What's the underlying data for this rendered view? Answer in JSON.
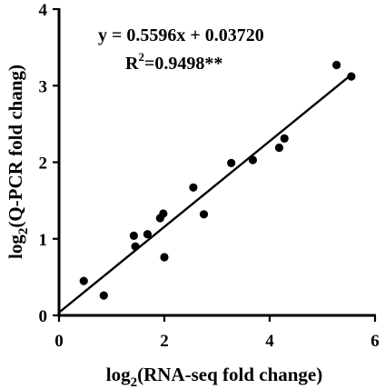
{
  "chart_data": {
    "type": "scatter",
    "title": "",
    "xlabel": {
      "prefix": "log",
      "sub": "2",
      "text": "(RNA-seq fold change)"
    },
    "ylabel": {
      "prefix": "log",
      "sub": "2",
      "text": "(Q-PCR fold chang)"
    },
    "xlim": [
      0,
      6
    ],
    "ylim": [
      0,
      4
    ],
    "xticks": [
      0,
      2,
      4,
      6
    ],
    "yticks": [
      0,
      1,
      2,
      3,
      4
    ],
    "grid": false,
    "points": [
      {
        "x": 0.47,
        "y": 0.45
      },
      {
        "x": 0.85,
        "y": 0.26
      },
      {
        "x": 1.42,
        "y": 1.04
      },
      {
        "x": 1.45,
        "y": 0.9
      },
      {
        "x": 1.68,
        "y": 1.06
      },
      {
        "x": 1.92,
        "y": 1.27
      },
      {
        "x": 1.98,
        "y": 1.33
      },
      {
        "x": 2.0,
        "y": 0.76
      },
      {
        "x": 2.55,
        "y": 1.67
      },
      {
        "x": 2.75,
        "y": 1.32
      },
      {
        "x": 3.27,
        "y": 1.99
      },
      {
        "x": 3.68,
        "y": 2.03
      },
      {
        "x": 4.18,
        "y": 2.19
      },
      {
        "x": 4.28,
        "y": 2.31
      },
      {
        "x": 5.27,
        "y": 3.27
      },
      {
        "x": 5.55,
        "y": 3.12
      }
    ],
    "fit": {
      "slope": 0.5596,
      "intercept": 0.0372,
      "x_range": [
        0,
        5.55
      ]
    },
    "annotations": {
      "equation": "y = 0.5596x + 0.03720",
      "r2_prefix": "R",
      "r2_sup": "2",
      "r2_value": "=0.9498**"
    }
  }
}
